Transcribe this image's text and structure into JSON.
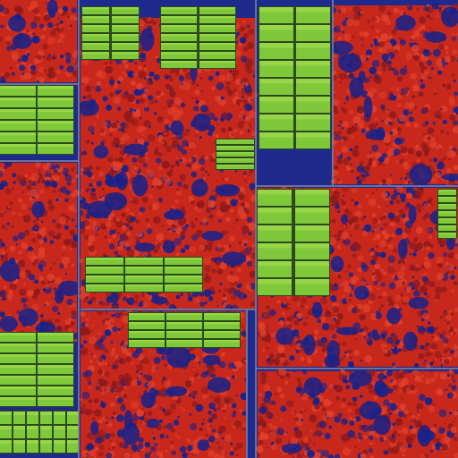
{
  "colors": {
    "base_blue": "#1e2a8c",
    "deep_blue": "#16228a",
    "logic_red": "#c8281c",
    "logic_red_dark": "#8e1a1c",
    "logic_red_light": "#e0402a",
    "memory_green": "#7ec83a",
    "memory_green_light": "#a6e050",
    "memory_gap": "#2a4a1a",
    "routing_gray": "#7a84a0"
  },
  "regions": [
    {
      "name": "top-left-logic",
      "kind": "logic"
    },
    {
      "name": "left-logic",
      "kind": "logic"
    },
    {
      "name": "center-logic",
      "kind": "logic"
    },
    {
      "name": "upper-right-logic",
      "kind": "logic"
    },
    {
      "name": "right-logic",
      "kind": "logic"
    },
    {
      "name": "bottom-center-logic",
      "kind": "logic"
    },
    {
      "name": "bottom-right-logic",
      "kind": "logic"
    }
  ],
  "memory_blocks": [
    {
      "name": "memory-block-top-left"
    },
    {
      "name": "memory-block-top-center"
    },
    {
      "name": "memory-block-top-right"
    },
    {
      "name": "memory-block-left"
    },
    {
      "name": "memory-block-center-right"
    },
    {
      "name": "memory-block-right"
    },
    {
      "name": "memory-block-mid-center"
    },
    {
      "name": "memory-block-bottom-center"
    },
    {
      "name": "memory-block-bottom-left"
    },
    {
      "name": "memory-block-bottom-left-grid"
    },
    {
      "name": "memory-block-bottom-right"
    }
  ]
}
